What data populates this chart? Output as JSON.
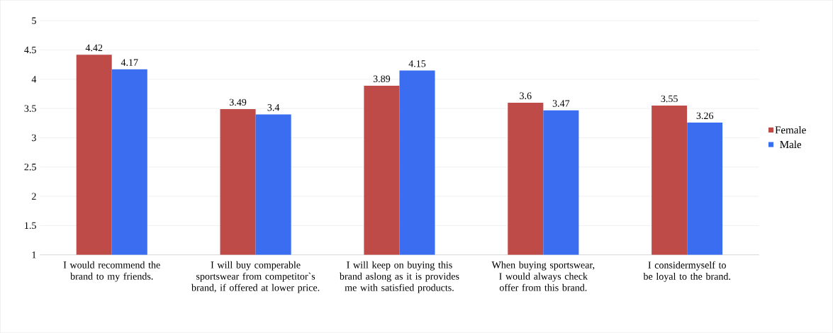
{
  "chart_data": {
    "type": "bar",
    "categories": [
      "I would recommend the brand to my friends.",
      "I will buy comperable sportswear from competitor`s brand, if offered at lower price.",
      "I will keep on buying this brand aslong as it is provides me with satisfied products.",
      "When buying sportswear, I would always check offer from this brand.",
      "I considermyself to be loyal to the brand."
    ],
    "series": [
      {
        "name": "Female",
        "color": "#be4b48",
        "values": [
          4.42,
          3.49,
          3.89,
          3.6,
          3.55
        ]
      },
      {
        "name": "Male",
        "color": "#3a6df0",
        "values": [
          4.17,
          3.4,
          4.15,
          3.47,
          3.26
        ]
      }
    ],
    "ylim": [
      1,
      5
    ],
    "yticks": [
      1,
      1.5,
      2,
      2.5,
      3,
      3.5,
      4,
      4.5,
      5
    ],
    "grid": "y",
    "legend": "right",
    "data_labels": true
  }
}
